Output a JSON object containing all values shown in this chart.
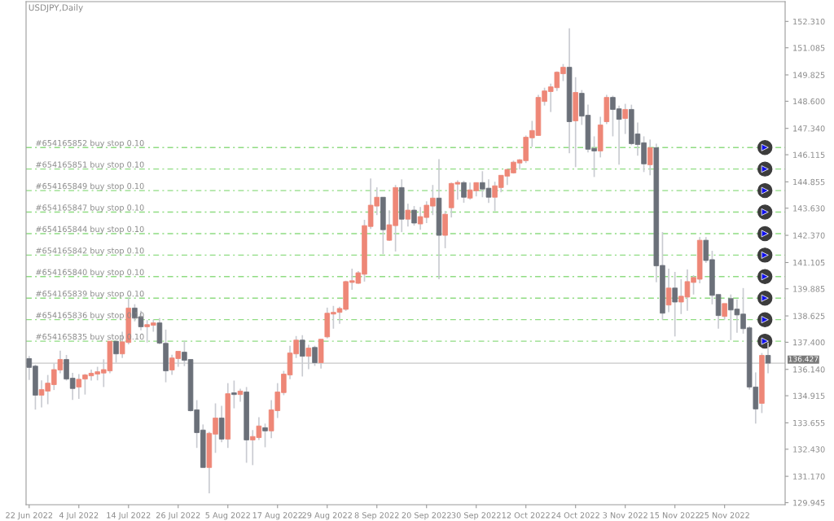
{
  "chart_data": {
    "type": "candlestick",
    "title": "USDJPY,Daily",
    "categories": [
      "22 Jun 2022",
      null,
      null,
      null,
      null,
      null,
      null,
      null,
      "4 Jul 2022",
      null,
      null,
      null,
      null,
      null,
      null,
      null,
      "14 Jul 2022",
      null,
      null,
      null,
      null,
      null,
      null,
      null,
      "26 Jul 2022",
      null,
      null,
      null,
      null,
      null,
      null,
      null,
      "5 Aug 2022",
      null,
      null,
      null,
      null,
      null,
      null,
      null,
      "17 Aug 2022",
      null,
      null,
      null,
      null,
      null,
      null,
      null,
      "29 Aug 2022",
      null,
      null,
      null,
      null,
      null,
      null,
      null,
      "8 Sep 2022",
      null,
      null,
      null,
      null,
      null,
      null,
      null,
      "20 Sep 2022",
      null,
      null,
      null,
      null,
      null,
      null,
      null,
      "30 Sep 2022",
      null,
      null,
      null,
      null,
      null,
      null,
      null,
      "12 Oct 2022",
      null,
      null,
      null,
      null,
      null,
      null,
      null,
      "24 Oct 2022",
      null,
      null,
      null,
      null,
      null,
      null,
      null,
      "3 Nov 2022",
      null,
      null,
      null,
      null,
      null,
      null,
      null,
      "15 Nov 2022",
      null,
      null,
      null,
      null,
      null,
      null,
      null,
      "25 Nov 2022",
      null,
      null,
      null,
      null,
      null,
      null,
      null
    ],
    "ohlc": [
      [
        136.64,
        136.76,
        135.65,
        136.23
      ],
      [
        136.29,
        136.36,
        134.27,
        134.94
      ],
      [
        134.94,
        135.63,
        134.37,
        135.2
      ],
      [
        135.13,
        135.88,
        134.52,
        135.5
      ],
      [
        135.43,
        136.41,
        135.18,
        136.13
      ],
      [
        136.11,
        137.01,
        135.96,
        136.6
      ],
      [
        136.6,
        136.81,
        135.62,
        135.69
      ],
      [
        135.73,
        135.98,
        134.72,
        135.25
      ],
      [
        135.32,
        135.92,
        134.77,
        135.68
      ],
      [
        135.69,
        135.93,
        134.97,
        135.88
      ],
      [
        135.84,
        136.13,
        135.62,
        135.96
      ],
      [
        135.92,
        136.26,
        135.63,
        136.03
      ],
      [
        135.97,
        136.61,
        135.32,
        136.13
      ],
      [
        136.07,
        137.45,
        135.96,
        137.45
      ],
      [
        137.45,
        137.45,
        136.45,
        136.86
      ],
      [
        136.86,
        137.89,
        136.67,
        137.42
      ],
      [
        137.39,
        139.46,
        137.3,
        138.99
      ],
      [
        138.99,
        139.17,
        138.37,
        138.52
      ],
      [
        138.59,
        138.86,
        137.96,
        138.12
      ],
      [
        138.12,
        138.43,
        137.39,
        138.22
      ],
      [
        138.19,
        138.45,
        137.89,
        138.3
      ],
      [
        138.3,
        138.52,
        137.3,
        137.36
      ],
      [
        137.35,
        137.99,
        135.54,
        136.07
      ],
      [
        136.11,
        136.82,
        135.88,
        136.67
      ],
      [
        136.64,
        136.98,
        136.26,
        136.98
      ],
      [
        136.94,
        137.45,
        136.29,
        136.56
      ],
      [
        136.6,
        136.6,
        134.18,
        134.22
      ],
      [
        134.26,
        134.71,
        132.49,
        133.2
      ],
      [
        133.32,
        133.58,
        131.58,
        131.58
      ],
      [
        131.58,
        133.24,
        130.38,
        133.17
      ],
      [
        133.13,
        134.56,
        132.26,
        133.88
      ],
      [
        133.88,
        134.45,
        132.75,
        132.9
      ],
      [
        132.9,
        135.5,
        132.49,
        135.01
      ],
      [
        135.05,
        135.62,
        134.33,
        134.97
      ],
      [
        134.97,
        135.24,
        134.64,
        135.13
      ],
      [
        135.09,
        135.32,
        131.8,
        132.86
      ],
      [
        132.86,
        133.32,
        131.69,
        133.02
      ],
      [
        132.97,
        133.92,
        132.86,
        133.51
      ],
      [
        133.43,
        133.62,
        132.52,
        133.28
      ],
      [
        133.28,
        134.71,
        132.94,
        134.26
      ],
      [
        134.22,
        135.5,
        133.88,
        135.09
      ],
      [
        135.06,
        136.07,
        134.94,
        135.92
      ],
      [
        135.88,
        137.24,
        135.69,
        136.9
      ],
      [
        136.86,
        137.69,
        136.67,
        137.5
      ],
      [
        137.5,
        137.73,
        135.81,
        136.75
      ],
      [
        136.75,
        137.28,
        136.15,
        137.13
      ],
      [
        137.16,
        137.24,
        136.3,
        136.45
      ],
      [
        136.45,
        137.54,
        136.18,
        137.54
      ],
      [
        137.65,
        139.01,
        137.58,
        138.75
      ],
      [
        138.71,
        139.09,
        138.03,
        138.79
      ],
      [
        138.79,
        139.05,
        138.26,
        138.97
      ],
      [
        138.93,
        140.26,
        138.86,
        140.22
      ],
      [
        140.18,
        140.82,
        139.84,
        140.26
      ],
      [
        140.14,
        140.71,
        140.11,
        140.63
      ],
      [
        140.56,
        143.09,
        140.22,
        142.82
      ],
      [
        142.78,
        145.01,
        142.67,
        143.77
      ],
      [
        143.73,
        144.6,
        143.31,
        144.14
      ],
      [
        144.14,
        144.14,
        141.5,
        142.63
      ],
      [
        142.14,
        143.54,
        142.11,
        142.86
      ],
      [
        142.82,
        144.71,
        141.62,
        144.59
      ],
      [
        144.59,
        144.97,
        142.52,
        143.12
      ],
      [
        143.12,
        143.84,
        142.78,
        143.54
      ],
      [
        143.54,
        143.73,
        142.82,
        142.94
      ],
      [
        142.9,
        143.69,
        142.63,
        143.24
      ],
      [
        143.2,
        143.95,
        142.94,
        143.77
      ],
      [
        143.73,
        144.71,
        143.31,
        144.1
      ],
      [
        144.1,
        145.91,
        140.33,
        142.37
      ],
      [
        142.37,
        143.5,
        141.77,
        143.35
      ],
      [
        143.65,
        144.82,
        143.2,
        144.78
      ],
      [
        144.75,
        144.93,
        144.03,
        144.83
      ],
      [
        144.82,
        144.9,
        143.88,
        144.14
      ],
      [
        144.1,
        144.82,
        144.03,
        144.48
      ],
      [
        144.44,
        144.82,
        144.18,
        144.82
      ],
      [
        144.82,
        145.35,
        144.14,
        144.52
      ],
      [
        144.56,
        144.97,
        143.88,
        144.14
      ],
      [
        144.14,
        144.86,
        143.5,
        144.67
      ],
      [
        144.59,
        145.16,
        144.37,
        145.16
      ],
      [
        145.12,
        145.46,
        144.71,
        145.43
      ],
      [
        145.27,
        145.84,
        145.24,
        145.77
      ],
      [
        145.73,
        145.91,
        145.43,
        145.88
      ],
      [
        145.84,
        147.01,
        145.73,
        146.93
      ],
      [
        146.9,
        147.69,
        146.48,
        147.24
      ],
      [
        147.01,
        148.9,
        147.01,
        148.78
      ],
      [
        148.59,
        149.23,
        148.4,
        149.08
      ],
      [
        149.05,
        149.42,
        148.1,
        149.27
      ],
      [
        149.23,
        149.99,
        149.08,
        149.95
      ],
      [
        149.88,
        150.33,
        149.54,
        150.18
      ],
      [
        150.18,
        151.99,
        146.18,
        147.65
      ],
      [
        147.69,
        149.72,
        145.54,
        149.01
      ],
      [
        148.97,
        149.12,
        147.5,
        147.91
      ],
      [
        147.95,
        148.44,
        146.22,
        146.37
      ],
      [
        146.41,
        146.97,
        145.08,
        146.29
      ],
      [
        146.29,
        147.88,
        145.99,
        147.5
      ],
      [
        147.65,
        148.9,
        147.54,
        148.78
      ],
      [
        148.78,
        148.86,
        146.97,
        148.22
      ],
      [
        148.25,
        148.4,
        145.65,
        147.76
      ],
      [
        147.8,
        148.48,
        147.08,
        148.22
      ],
      [
        148.22,
        148.44,
        146.56,
        146.63
      ],
      [
        147.08,
        147.61,
        146.07,
        146.59
      ],
      [
        146.67,
        146.97,
        145.31,
        145.69
      ],
      [
        145.65,
        146.82,
        145.16,
        146.44
      ],
      [
        146.44,
        146.63,
        140.19,
        140.95
      ],
      [
        140.97,
        142.52,
        138.45,
        138.75
      ],
      [
        139.13,
        140.82,
        138.8,
        139.92
      ],
      [
        139.92,
        140.67,
        137.67,
        139.27
      ],
      [
        139.27,
        140.33,
        138.71,
        139.54
      ],
      [
        139.5,
        140.78,
        138.86,
        140.22
      ],
      [
        140.18,
        140.52,
        139.62,
        140.41
      ],
      [
        140.33,
        142.29,
        140.14,
        142.14
      ],
      [
        142.14,
        142.29,
        141.09,
        141.2
      ],
      [
        141.24,
        141.65,
        139.16,
        139.58
      ],
      [
        139.62,
        139.62,
        138.03,
        138.64
      ],
      [
        138.6,
        139.2,
        138.45,
        139.2
      ],
      [
        139.43,
        139.62,
        137.5,
        138.9
      ],
      [
        138.94,
        139.39,
        137.84,
        138.67
      ],
      [
        138.71,
        139.92,
        137.8,
        138.03
      ],
      [
        138.07,
        138.14,
        135.2,
        135.32
      ],
      [
        135.32,
        136.0,
        133.62,
        134.3
      ],
      [
        134.56,
        136.9,
        134.11,
        136.79
      ],
      [
        136.79,
        137.39,
        135.96,
        136.43
      ]
    ],
    "colors": [
      "#6b7079",
      "#6b7079",
      "#ee8777",
      "#ee8777",
      "#ee8777",
      "#ee8777",
      "#6b7079",
      "#6b7079",
      "#ee8777",
      "#ee8777",
      "#ee8777",
      "#ee8777",
      "#ee8777",
      "#ee8777",
      "#6b7079",
      "#ee8777",
      "#ee8777",
      "#6b7079",
      "#6b7079",
      "#ee8777",
      "#ee8777",
      "#6b7079",
      "#6b7079",
      "#ee8777",
      "#ee8777",
      "#6b7079",
      "#6b7079",
      "#6b7079",
      "#6b7079",
      "#ee8777",
      "#ee8777",
      "#6b7079",
      "#ee8777",
      "#6b7079",
      "#ee8777",
      "#6b7079",
      "#ee8777",
      "#ee8777",
      "#6b7079",
      "#ee8777",
      "#ee8777",
      "#ee8777",
      "#ee8777",
      "#ee8777",
      "#6b7079",
      "#ee8777",
      "#6b7079",
      "#ee8777",
      "#ee8777",
      "#ee8777",
      "#ee8777",
      "#ee8777",
      "#ee8777",
      "#ee8777",
      "#ee8777",
      "#ee8777",
      "#ee8777",
      "#6b7079",
      "#ee8777",
      "#ee8777",
      "#6b7079",
      "#ee8777",
      "#6b7079",
      "#ee8777",
      "#ee8777",
      "#ee8777",
      "#6b7079",
      "#ee8777",
      "#ee8777",
      "#ee8777",
      "#6b7079",
      "#ee8777",
      "#ee8777",
      "#6b7079",
      "#6b7079",
      "#ee8777",
      "#ee8777",
      "#ee8777",
      "#ee8777",
      "#ee8777",
      "#ee8777",
      "#ee8777",
      "#ee8777",
      "#ee8777",
      "#ee8777",
      "#ee8777",
      "#ee8777",
      "#6b7079",
      "#ee8777",
      "#6b7079",
      "#6b7079",
      "#6b7079",
      "#ee8777",
      "#ee8777",
      "#6b7079",
      "#6b7079",
      "#ee8777",
      "#6b7079",
      "#6b7079",
      "#6b7079",
      "#ee8777",
      "#6b7079",
      "#6b7079",
      "#ee8777",
      "#6b7079",
      "#ee8777",
      "#ee8777",
      "#ee8777",
      "#ee8777",
      "#6b7079",
      "#6b7079",
      "#6b7079",
      "#ee8777",
      "#6b7079",
      "#6b7079",
      "#6b7079",
      "#6b7079",
      "#6b7079",
      "#ee8777",
      "#6b7079"
    ],
    "ylim": [
      129.85,
      153.23
    ],
    "yticks": [
      {
        "value": 129.945,
        "label": "129.945"
      },
      {
        "value": 131.17,
        "label": "131.170"
      },
      {
        "value": 132.43,
        "label": "132.430"
      },
      {
        "value": 133.655,
        "label": "133.655"
      },
      {
        "value": 134.915,
        "label": "134.915"
      },
      {
        "value": 136.14,
        "label": "136.140"
      },
      {
        "value": 137.4,
        "label": "137.400"
      },
      {
        "value": 138.625,
        "label": "138.625"
      },
      {
        "value": 139.885,
        "label": "139.885"
      },
      {
        "value": 141.105,
        "label": "141.105"
      },
      {
        "value": 142.37,
        "label": "142.370"
      },
      {
        "value": 143.63,
        "label": "143.630"
      },
      {
        "value": 144.855,
        "label": "144.855"
      },
      {
        "value": 146.115,
        "label": "146.115"
      },
      {
        "value": 147.34,
        "label": "147.340"
      },
      {
        "value": 148.6,
        "label": "148.600"
      },
      {
        "value": 149.825,
        "label": "149.825"
      },
      {
        "value": 151.085,
        "label": "151.085"
      },
      {
        "value": 152.31,
        "label": "152.310"
      }
    ],
    "ref_lines": [
      {
        "axis": "y",
        "value": 146.45,
        "label": "#654165852 buy stop 0.10",
        "color": "#8fdc82",
        "line_style": "dashed"
      },
      {
        "axis": "y",
        "value": 145.45,
        "label": "#654165851 buy stop 0.10",
        "color": "#8fdc82",
        "line_style": "dashed"
      },
      {
        "axis": "y",
        "value": 144.45,
        "label": "#654165849 buy stop 0.10",
        "color": "#8fdc82",
        "line_style": "dashed"
      },
      {
        "axis": "y",
        "value": 143.45,
        "label": "#654165847 buy stop 0.10",
        "color": "#8fdc82",
        "line_style": "dashed"
      },
      {
        "axis": "y",
        "value": 142.45,
        "label": "#654165844 buy stop 0.10",
        "color": "#8fdc82",
        "line_style": "dashed"
      },
      {
        "axis": "y",
        "value": 141.45,
        "label": "#654165842 buy stop 0.10",
        "color": "#8fdc82",
        "line_style": "dashed"
      },
      {
        "axis": "y",
        "value": 140.45,
        "label": "#654165840 buy stop 0.10",
        "color": "#8fdc82",
        "line_style": "dashed"
      },
      {
        "axis": "y",
        "value": 139.45,
        "label": "#654165839 buy stop 0.10",
        "color": "#8fdc82",
        "line_style": "dashed"
      },
      {
        "axis": "y",
        "value": 138.45,
        "label": "#654165836 buy stop 0.10",
        "color": "#8fdc82",
        "line_style": "dashed"
      },
      {
        "axis": "y",
        "value": 137.45,
        "label": "#654165835 buy stop 0.10",
        "color": "#8fdc82",
        "line_style": "dashed"
      },
      {
        "axis": "y",
        "value": 136.427,
        "label": "136.427",
        "color": "#c8c8c8",
        "line_style": "solid"
      }
    ],
    "grid": false,
    "legend": false
  }
}
